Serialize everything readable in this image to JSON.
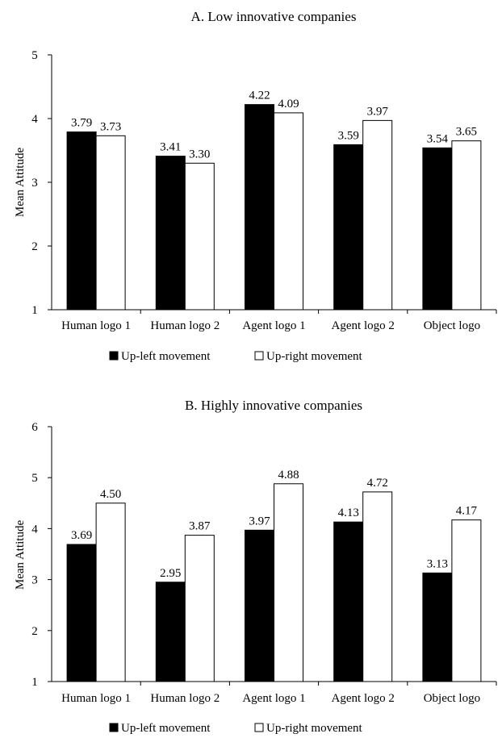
{
  "chart_data": [
    {
      "type": "bar",
      "title": "A. Low innovative companies",
      "ylabel": "Mean Attitude",
      "xlabel": "",
      "ylim": [
        1,
        5
      ],
      "yticks": [
        1,
        2,
        3,
        4,
        5
      ],
      "grid": false,
      "legend_position": "bottom",
      "categories": [
        "Human logo 1",
        "Human logo 2",
        "Agent logo 1",
        "Agent logo 2",
        "Object logo"
      ],
      "series": [
        {
          "name": "Up-left movement",
          "color": "#000000",
          "values": [
            3.79,
            3.41,
            4.22,
            3.59,
            3.54
          ],
          "labels": [
            "3.79",
            "3.41",
            "4.22",
            "3.59",
            "3.54"
          ]
        },
        {
          "name": "Up-right movement",
          "color": "#ffffff",
          "values": [
            3.73,
            3.3,
            4.09,
            3.97,
            3.65
          ],
          "labels": [
            "3.73",
            "3.30",
            "4.09",
            "3.97",
            "3.65"
          ]
        }
      ]
    },
    {
      "type": "bar",
      "title": "B. Highly innovative companies",
      "ylabel": "Mean Attitude",
      "xlabel": "",
      "ylim": [
        1,
        6
      ],
      "yticks": [
        1,
        2,
        3,
        4,
        5,
        6
      ],
      "grid": false,
      "legend_position": "bottom",
      "categories": [
        "Human logo 1",
        "Human logo 2",
        "Agent logo 1",
        "Agent logo 2",
        "Object logo"
      ],
      "series": [
        {
          "name": "Up-left movement",
          "color": "#000000",
          "values": [
            3.69,
            2.95,
            3.97,
            4.13,
            3.13
          ],
          "labels": [
            "3.69",
            "2.95",
            "3.97",
            "4.13",
            "3.13"
          ]
        },
        {
          "name": "Up-right movement",
          "color": "#ffffff",
          "values": [
            4.5,
            3.87,
            4.88,
            4.72,
            4.17
          ],
          "labels": [
            "4.50",
            "3.87",
            "4.88",
            "4.72",
            "4.17"
          ]
        }
      ]
    }
  ]
}
